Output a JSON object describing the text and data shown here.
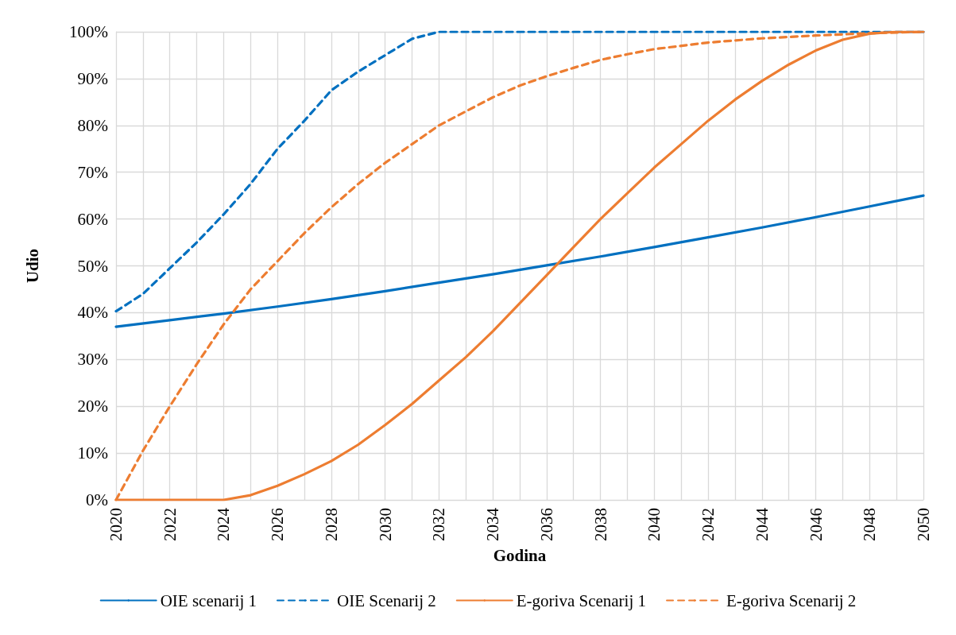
{
  "chart_data": {
    "type": "line",
    "xlabel": "Godina",
    "ylabel": "Udio",
    "xlim": [
      2020,
      2050
    ],
    "xticks": [
      2020,
      {
        "value": 2021,
        "label": null
      },
      2022,
      {
        "value": 2023,
        "label": null
      },
      2024,
      {
        "value": 2025,
        "label": null
      },
      2026,
      {
        "value": 2027,
        "label": null
      },
      2028,
      {
        "value": 2029,
        "label": null
      },
      2030,
      {
        "value": 2031,
        "label": null
      },
      2032,
      {
        "value": 2033,
        "label": null
      },
      2034,
      {
        "value": 2035,
        "label": null
      },
      2036,
      {
        "value": 2037,
        "label": null
      },
      2038,
      {
        "value": 2039,
        "label": null
      },
      2040,
      {
        "value": 2041,
        "label": null
      },
      2042,
      {
        "value": 2043,
        "label": null
      },
      2044,
      {
        "value": 2045,
        "label": null
      },
      2046,
      {
        "value": 2047,
        "label": null
      },
      2048,
      {
        "value": 2049,
        "label": null
      },
      2050
    ],
    "ylim": [
      0,
      100
    ],
    "yticks": [
      {
        "value": 0,
        "label": "0%"
      },
      {
        "value": 10,
        "label": "10%"
      },
      {
        "value": 20,
        "label": "20%"
      },
      {
        "value": 30,
        "label": "30%"
      },
      {
        "value": 40,
        "label": "40%"
      },
      {
        "value": 50,
        "label": "50%"
      },
      {
        "value": 60,
        "label": "60%"
      },
      {
        "value": 70,
        "label": "70%"
      },
      {
        "value": 80,
        "label": "80%"
      },
      {
        "value": 90,
        "label": "90%"
      },
      {
        "value": 100,
        "label": "100%"
      }
    ],
    "grid": true,
    "legend": "bottom",
    "marker": "none",
    "series": [
      {
        "name": "OIE scenarij 1",
        "color": "#0070c0",
        "line_style": "solid",
        "x": [
          2020,
          2022,
          2024,
          2026,
          2028,
          2030,
          2032,
          2034,
          2036,
          2038,
          2040,
          2042,
          2044,
          2046,
          2048,
          2050
        ],
        "values": [
          37,
          38.4,
          39.8,
          41.3,
          42.9,
          44.6,
          46.4,
          48.2,
          50.1,
          52,
          54,
          56.1,
          58.2,
          60.4,
          62.7,
          65
        ]
      },
      {
        "name": "OIE Scenarij 2",
        "color": "#0070c0",
        "line_style": "dashed",
        "x": [
          2020,
          2021,
          2022,
          2023,
          2024,
          2025,
          2026,
          2027,
          2028,
          2029,
          2030,
          2031,
          2032,
          2036,
          2040,
          2044,
          2048,
          2050
        ],
        "values": [
          40.3,
          44,
          49.5,
          55,
          61,
          67.5,
          75,
          81,
          87.5,
          91.5,
          95,
          98.5,
          100,
          100,
          100,
          100,
          100,
          100
        ]
      },
      {
        "name": "E-goriva Scenarij 1",
        "color": "#ed7d31",
        "line_style": "solid",
        "x": [
          2020,
          2022,
          2024,
          2025,
          2026,
          2027,
          2028,
          2029,
          2030,
          2031,
          2032,
          2033,
          2034,
          2035,
          2036,
          2037,
          2038,
          2039,
          2040,
          2041,
          2042,
          2043,
          2044,
          2045,
          2046,
          2047,
          2048,
          2049,
          2050
        ],
        "values": [
          0,
          0,
          0,
          1,
          3,
          5.5,
          8.3,
          11.8,
          16,
          20.5,
          25.5,
          30.5,
          36,
          42,
          48,
          54,
          60,
          65.5,
          71,
          76,
          81,
          85.5,
          89.5,
          93,
          96,
          98.3,
          99.6,
          100,
          100
        ]
      },
      {
        "name": "E-goriva Scenarij 2",
        "color": "#ed7d31",
        "line_style": "dashed",
        "x": [
          2020,
          2021,
          2022,
          2023,
          2024,
          2025,
          2026,
          2027,
          2028,
          2029,
          2030,
          2031,
          2032,
          2033,
          2034,
          2035,
          2036,
          2037,
          2038,
          2039,
          2040,
          2042,
          2044,
          2046,
          2048,
          2050
        ],
        "values": [
          0,
          10.5,
          20,
          29,
          37.5,
          45,
          51,
          57,
          62.5,
          67.5,
          72,
          76,
          80,
          83,
          86,
          88.5,
          90.5,
          92.3,
          94,
          95.2,
          96.3,
          97.7,
          98.6,
          99.2,
          99.7,
          100
        ]
      }
    ]
  }
}
